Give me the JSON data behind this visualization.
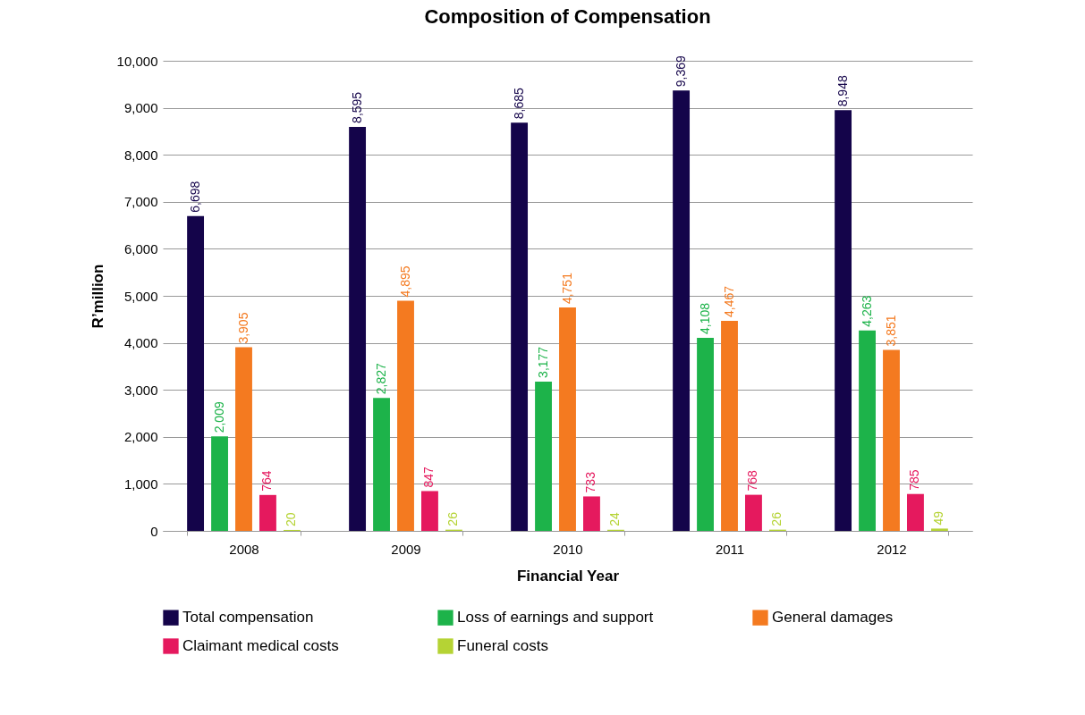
{
  "chart_data": {
    "type": "bar",
    "title": "Composition of Compensation",
    "xlabel": "Financial Year",
    "ylabel": "R’million",
    "categories": [
      "2008",
      "2009",
      "2010",
      "2011",
      "2012"
    ],
    "series": [
      {
        "name": "Total compensation",
        "color": "#14044a",
        "values": [
          6698,
          8595,
          8685,
          9369,
          8948
        ],
        "value_labels": [
          "6,698",
          "8,595",
          "8,685",
          "9,369",
          "8,948"
        ]
      },
      {
        "name": "Loss of earnings and support",
        "color": "#1db34a",
        "values": [
          2009,
          2827,
          3177,
          4108,
          4263
        ],
        "value_labels": [
          "2,009",
          "2,827",
          "3,177",
          "4,108",
          "4,263"
        ]
      },
      {
        "name": "General damages",
        "color": "#f47a20",
        "values": [
          3905,
          4895,
          4751,
          4467,
          3851
        ],
        "value_labels": [
          "3,905",
          "4,895",
          "4,751",
          "4,467",
          "3,851"
        ]
      },
      {
        "name": "Claimant medical costs",
        "color": "#e5195e",
        "values": [
          764,
          847,
          733,
          768,
          785
        ],
        "value_labels": [
          "764",
          "847",
          "733",
          "768",
          "785"
        ]
      },
      {
        "name": "Funeral costs",
        "color": "#b5d334",
        "values": [
          20,
          26,
          24,
          26,
          49
        ],
        "value_labels": [
          "20",
          "26",
          "24",
          "26",
          "49"
        ]
      }
    ],
    "ylim": [
      0,
      10000
    ],
    "yticks": [
      0,
      {
        "value": 1000,
        "label": "1,000"
      },
      {
        "value": 2000,
        "label": "2,000"
      },
      {
        "value": 3000,
        "label": "3,000"
      },
      {
        "value": 4000,
        "label": "4,000"
      },
      {
        "value": 5000,
        "label": "5,000"
      },
      {
        "value": 6000,
        "label": "6,000"
      },
      {
        "value": 7000,
        "label": "7,000"
      },
      {
        "value": 8000,
        "label": "8,000"
      },
      {
        "value": 9000,
        "label": "9,000"
      },
      {
        "value": 10000,
        "label": "10,000"
      }
    ],
    "grid": "y",
    "legend": "bottom"
  }
}
